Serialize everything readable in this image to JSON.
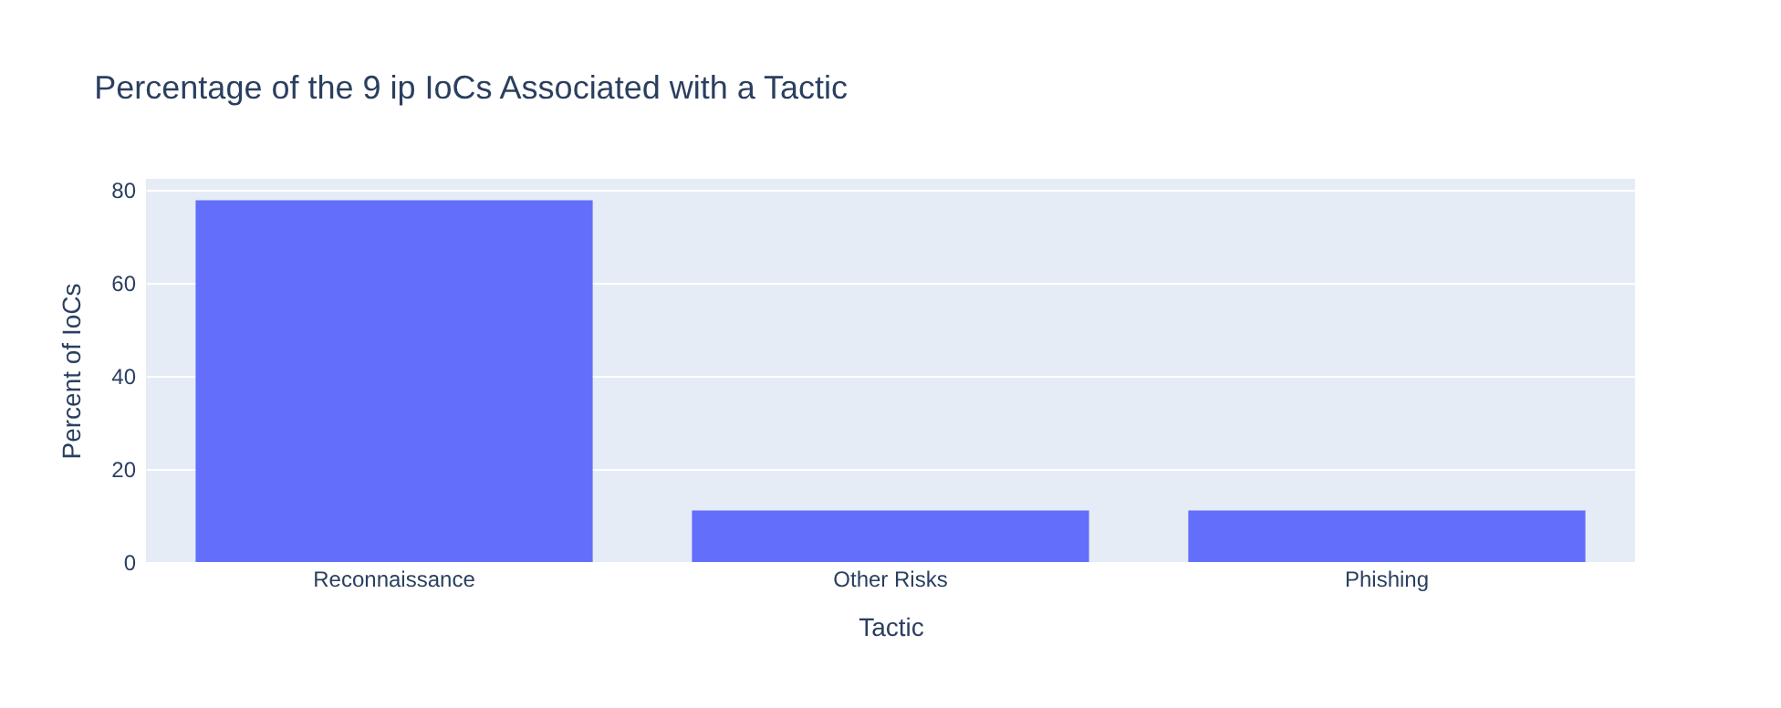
{
  "chart_data": {
    "type": "bar",
    "title": "Percentage of the 9 ip IoCs Associated with a Tactic",
    "xlabel": "Tactic",
    "ylabel": "Percent of IoCs",
    "categories": [
      "Reconnaissance",
      "Other Risks",
      "Phishing"
    ],
    "values": [
      77.8,
      11.1,
      11.1
    ],
    "color": "#636efa",
    "ylim": [
      0,
      82.4
    ],
    "yticks": [
      0,
      20,
      40,
      60,
      80
    ],
    "grid": "y"
  }
}
